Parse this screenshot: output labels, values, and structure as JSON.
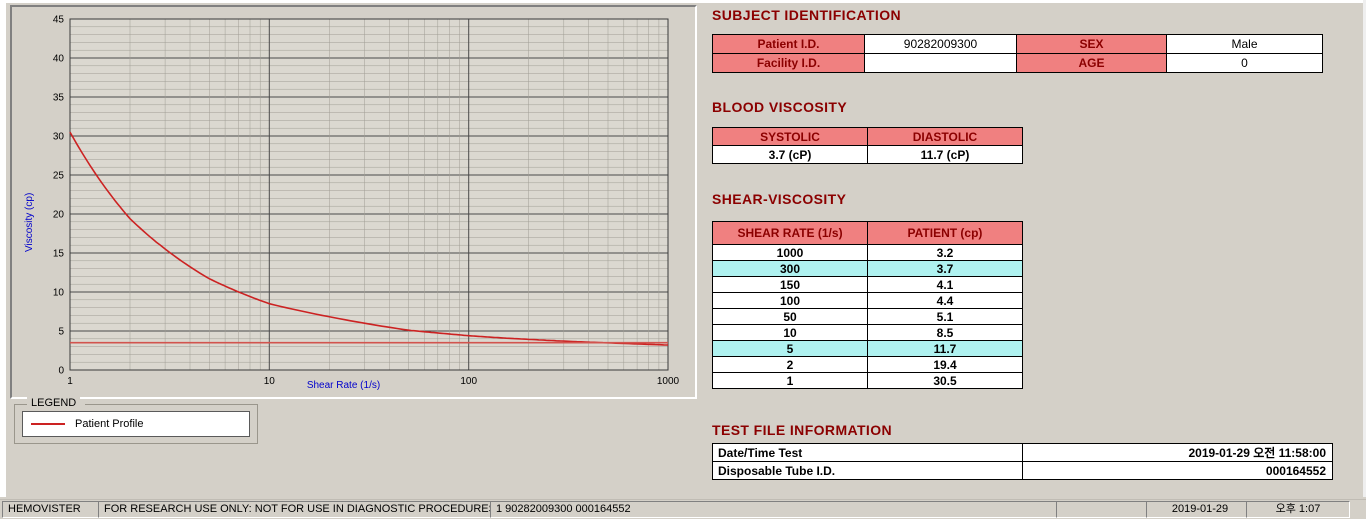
{
  "subject_identification": {
    "title": "SUBJECT IDENTIFICATION",
    "rows": [
      {
        "label1": "Patient I.D.",
        "value1": "90282009300",
        "label2": "SEX",
        "value2": "Male"
      },
      {
        "label1": "Facility I.D.",
        "value1": "",
        "label2": "AGE",
        "value2": "0"
      }
    ]
  },
  "blood_viscosity": {
    "title": "BLOOD VISCOSITY",
    "headers": [
      "SYSTOLIC",
      "DIASTOLIC"
    ],
    "values": [
      "3.7 (cP)",
      "11.7 (cP)"
    ]
  },
  "shear_viscosity": {
    "title": "SHEAR-VISCOSITY",
    "headers": [
      "SHEAR RATE (1/s)",
      "PATIENT (cp)"
    ],
    "highlight_color": "#aff2f0",
    "rows": [
      {
        "rate": "1000",
        "value": "3.2",
        "highlight": false
      },
      {
        "rate": "300",
        "value": "3.7",
        "highlight": true
      },
      {
        "rate": "150",
        "value": "4.1",
        "highlight": false
      },
      {
        "rate": "100",
        "value": "4.4",
        "highlight": false
      },
      {
        "rate": "50",
        "value": "5.1",
        "highlight": false
      },
      {
        "rate": "10",
        "value": "8.5",
        "highlight": false
      },
      {
        "rate": "5",
        "value": "11.7",
        "highlight": true
      },
      {
        "rate": "2",
        "value": "19.4",
        "highlight": false
      },
      {
        "rate": "1",
        "value": "30.5",
        "highlight": false
      }
    ]
  },
  "test_file_information": {
    "title": "TEST FILE INFORMATION",
    "rows": [
      {
        "label": "Date/Time Test",
        "value": "2019-01-29   오전 11:58:00"
      },
      {
        "label": "Disposable Tube I.D.",
        "value": "000164552"
      }
    ]
  },
  "legend": {
    "title": "LEGEND",
    "items": [
      {
        "label": "Patient Profile",
        "color": "#cc2222"
      }
    ]
  },
  "status_bar": {
    "app_name": "HEMOVISTER",
    "notice": "FOR RESEARCH USE ONLY: NOT FOR USE IN DIAGNOSTIC PROCEDURES",
    "record_info": "1  90282009300  000164552",
    "date": "2019-01-29",
    "time": "오후 1:07"
  },
  "accent_colors": {
    "section_title": "#8b0000",
    "table_header_bg": "#f08080",
    "axis_label": "#0000cc"
  },
  "chart_data": {
    "type": "line",
    "x_scale": "log",
    "title": "",
    "xlabel": "Shear Rate (1/s)",
    "ylabel": "Viscosity (cp)",
    "xlim": [
      1,
      1000
    ],
    "ylim": [
      0,
      45
    ],
    "x_ticks": [
      1,
      10,
      100,
      1000
    ],
    "y_ticks": [
      0,
      5,
      10,
      15,
      20,
      25,
      30,
      35,
      40,
      45
    ],
    "grid": "both-minor",
    "series": [
      {
        "name": "Patient Profile",
        "color": "#cc2222",
        "x": [
          1,
          2,
          5,
          10,
          50,
          100,
          150,
          300,
          1000
        ],
        "y": [
          30.5,
          19.4,
          11.7,
          8.5,
          5.1,
          4.4,
          4.1,
          3.7,
          3.2
        ]
      },
      {
        "name": "reference-line",
        "color": "#d2544e",
        "x": [
          1,
          1000
        ],
        "y": [
          3.5,
          3.5
        ]
      }
    ]
  }
}
